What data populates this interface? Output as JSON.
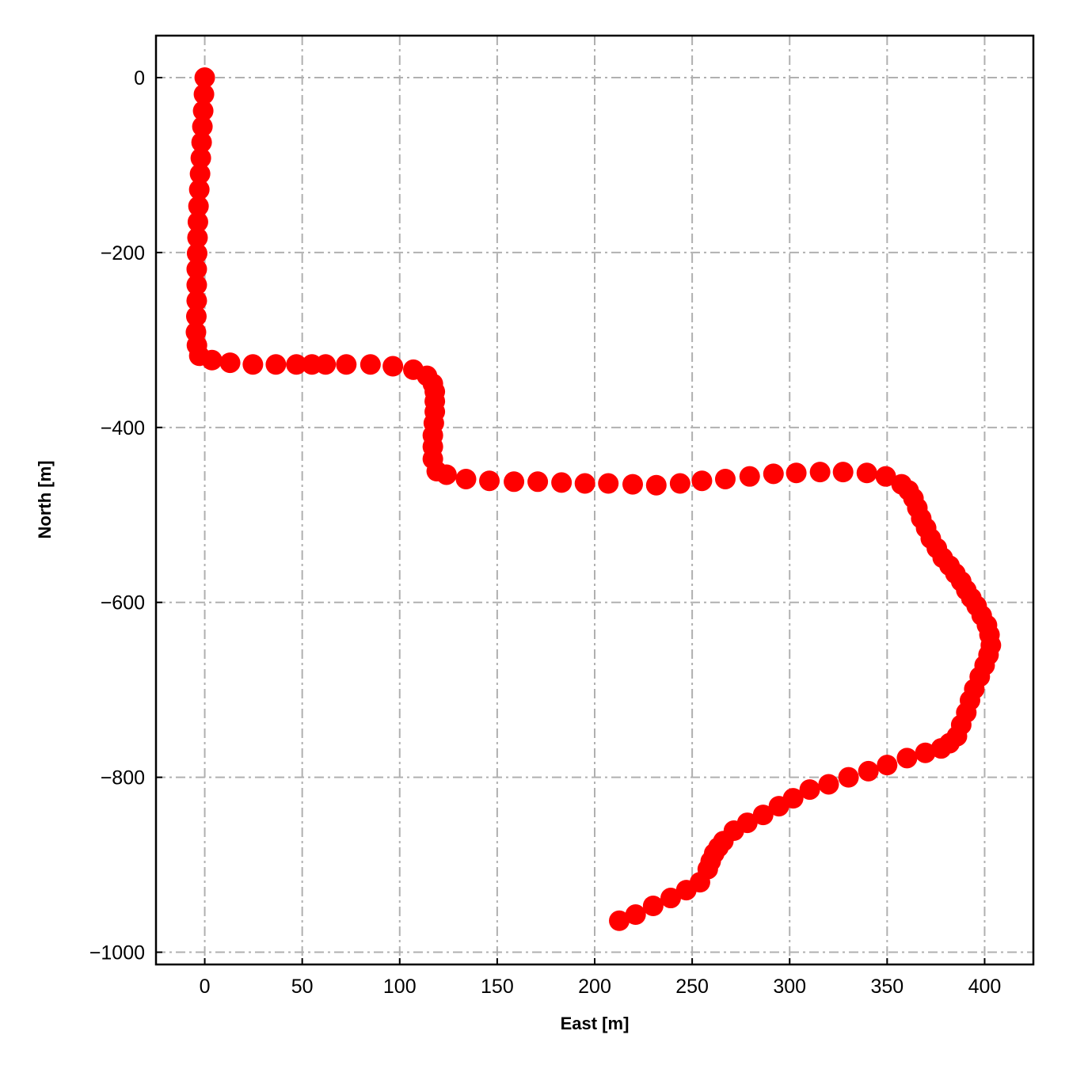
{
  "chart_data": {
    "type": "scatter",
    "title": "",
    "xlabel": "East [m]",
    "ylabel": "North [m]",
    "xlim": [
      -25,
      425
    ],
    "ylim": [
      -1014,
      48
    ],
    "xticks": [
      0,
      50,
      100,
      150,
      200,
      250,
      300,
      350,
      400
    ],
    "yticks": [
      0,
      -200,
      -400,
      -600,
      -800,
      -1000
    ],
    "xtick_labels": [
      "0",
      "50",
      "100",
      "150",
      "200",
      "250",
      "300",
      "350",
      "400"
    ],
    "ytick_labels": [
      "0",
      "−200",
      "−400",
      "−600",
      "−800",
      "−1000"
    ],
    "grid": true,
    "grid_style": "dash-dot",
    "marker_color": "#ff0000",
    "grid_color": "#b0b0b0",
    "points": [
      [
        0,
        0
      ],
      [
        -0.4,
        -19
      ],
      [
        -0.8,
        -38
      ],
      [
        -1.2,
        -56
      ],
      [
        -1.6,
        -74
      ],
      [
        -2,
        -92
      ],
      [
        -2.4,
        -110
      ],
      [
        -2.8,
        -128
      ],
      [
        -3.2,
        -147
      ],
      [
        -3.5,
        -165
      ],
      [
        -3.7,
        -183
      ],
      [
        -3.9,
        -201
      ],
      [
        -4.1,
        -219
      ],
      [
        -4.1,
        -237
      ],
      [
        -4.1,
        -255
      ],
      [
        -4.3,
        -273
      ],
      [
        -4.5,
        -291
      ],
      [
        -4,
        -306
      ],
      [
        -2.8,
        -318
      ],
      [
        3.7,
        -323
      ],
      [
        13,
        -326
      ],
      [
        24.7,
        -328
      ],
      [
        36.5,
        -328
      ],
      [
        47,
        -328
      ],
      [
        55,
        -328
      ],
      [
        62,
        -328
      ],
      [
        72.6,
        -328
      ],
      [
        85,
        -328
      ],
      [
        96.5,
        -330
      ],
      [
        107,
        -334
      ],
      [
        114,
        -341
      ],
      [
        117,
        -350
      ],
      [
        118,
        -359
      ],
      [
        118,
        -370
      ],
      [
        118,
        -382
      ],
      [
        117.5,
        -395
      ],
      [
        117,
        -409
      ],
      [
        117,
        -422
      ],
      [
        117,
        -436
      ],
      [
        119,
        -450
      ],
      [
        124,
        -454
      ],
      [
        134,
        -459
      ],
      [
        146,
        -461
      ],
      [
        158.6,
        -462
      ],
      [
        170.8,
        -462
      ],
      [
        183,
        -463
      ],
      [
        195,
        -464
      ],
      [
        207,
        -464
      ],
      [
        219.5,
        -465
      ],
      [
        231.6,
        -466
      ],
      [
        243.8,
        -464
      ],
      [
        255,
        -461
      ],
      [
        267,
        -459
      ],
      [
        279.5,
        -456
      ],
      [
        291.7,
        -453
      ],
      [
        303.4,
        -452
      ],
      [
        315.6,
        -451
      ],
      [
        327.4,
        -451
      ],
      [
        339.6,
        -452
      ],
      [
        349.3,
        -456
      ],
      [
        357.4,
        -465
      ],
      [
        361,
        -472
      ],
      [
        363.5,
        -481
      ],
      [
        365.5,
        -492
      ],
      [
        367.5,
        -504
      ],
      [
        370,
        -515
      ],
      [
        372.4,
        -527
      ],
      [
        375.5,
        -538
      ],
      [
        378.5,
        -549
      ],
      [
        382,
        -558
      ],
      [
        385,
        -567
      ],
      [
        388,
        -576
      ],
      [
        390.6,
        -586
      ],
      [
        393.2,
        -595
      ],
      [
        395.9,
        -604
      ],
      [
        398.5,
        -615
      ],
      [
        401.2,
        -626
      ],
      [
        402.5,
        -637
      ],
      [
        403.2,
        -649
      ],
      [
        402,
        -660
      ],
      [
        400,
        -672
      ],
      [
        397.5,
        -685
      ],
      [
        394.7,
        -699
      ],
      [
        392.5,
        -712
      ],
      [
        390.6,
        -726
      ],
      [
        388,
        -740
      ],
      [
        385.8,
        -753
      ],
      [
        382,
        -761
      ],
      [
        377.7,
        -767
      ],
      [
        369.6,
        -772
      ],
      [
        360.2,
        -778
      ],
      [
        350,
        -786
      ],
      [
        340.4,
        -793
      ],
      [
        330.2,
        -800
      ],
      [
        320,
        -808
      ],
      [
        310.3,
        -814
      ],
      [
        301.8,
        -824
      ],
      [
        294.5,
        -833
      ],
      [
        286.4,
        -843
      ],
      [
        278.3,
        -852
      ],
      [
        271.4,
        -861
      ],
      [
        266,
        -873
      ],
      [
        263.5,
        -880
      ],
      [
        261.3,
        -887
      ],
      [
        259.5,
        -896
      ],
      [
        258,
        -905
      ],
      [
        254,
        -920
      ],
      [
        247,
        -929
      ],
      [
        239,
        -938
      ],
      [
        230,
        -947
      ],
      [
        221,
        -957
      ],
      [
        212.6,
        -964
      ]
    ]
  }
}
